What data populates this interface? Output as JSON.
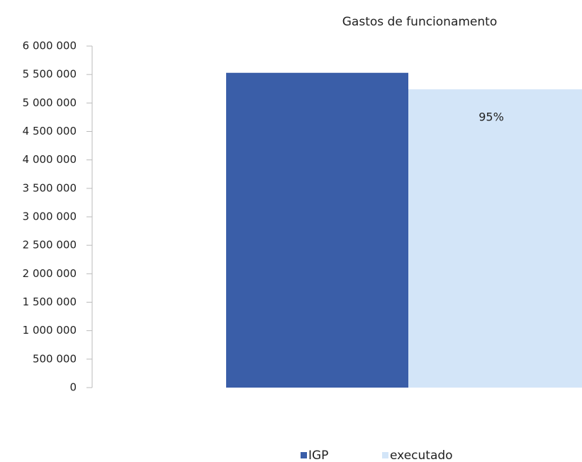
{
  "chart_data": {
    "type": "bar",
    "title": "Gastos de funcionamento",
    "categories": [
      null
    ],
    "series": [
      {
        "name": "IGP",
        "color": "#3a5ea8",
        "values": [
          5530000
        ]
      },
      {
        "name": "executado",
        "color": "#d3e5f8",
        "values": [
          5240000
        ]
      }
    ],
    "annotations": [
      "95%"
    ],
    "ylim": [
      0,
      6000000
    ],
    "yticks": [
      {
        "value": 0,
        "label": "0"
      },
      {
        "value": 500000,
        "label": "500 000"
      },
      {
        "value": 1000000,
        "label": "1 000 000"
      },
      {
        "value": 1500000,
        "label": "1 500 000"
      },
      {
        "value": 2000000,
        "label": "2 000 000"
      },
      {
        "value": 2500000,
        "label": "2 500 000"
      },
      {
        "value": 3000000,
        "label": "3 000 000"
      },
      {
        "value": 3500000,
        "label": "3 500 000"
      },
      {
        "value": 4000000,
        "label": "4 000 000"
      },
      {
        "value": 4500000,
        "label": "4 500 000"
      },
      {
        "value": 5000000,
        "label": "5 000 000"
      },
      {
        "value": 5500000,
        "label": "5 500 000"
      },
      {
        "value": 6000000,
        "label": "6 000 000"
      }
    ],
    "legend": "bottom"
  }
}
